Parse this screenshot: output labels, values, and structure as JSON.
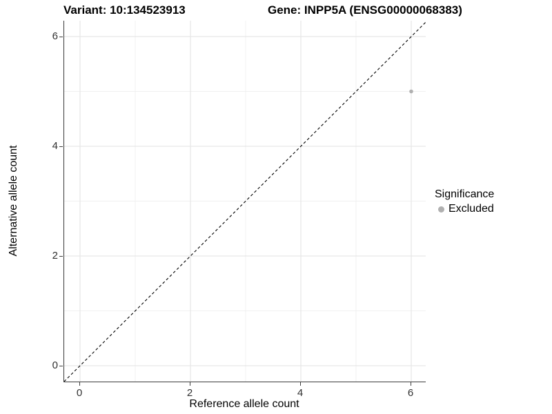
{
  "header": {
    "title_variant": "Variant: 10:134523913",
    "title_gene": "Gene: INPP5A (ENSG00000068383)"
  },
  "chart_data": {
    "type": "scatter",
    "titles": [
      "Variant: 10:134523913",
      "Gene: INPP5A (ENSG00000068383)"
    ],
    "xlabel": "Reference allele count",
    "ylabel": "Alternative allele count",
    "xlim": [
      -0.29,
      6.29
    ],
    "ylim": [
      -0.29,
      6.29
    ],
    "x_major_ticks": [
      0,
      2,
      4,
      6
    ],
    "y_major_ticks": [
      0,
      2,
      4,
      6
    ],
    "x_minor_ticks": [
      1,
      3,
      5
    ],
    "y_minor_ticks": [
      1,
      3,
      5
    ],
    "grid": "major+minor",
    "reference_line": {
      "kind": "identity y=x",
      "style": "dashed",
      "color": "#000000"
    },
    "series": [
      {
        "name": "Excluded",
        "color": "#b0b0b0",
        "points": [
          {
            "x": 6,
            "y": 5
          }
        ]
      }
    ],
    "legend": {
      "title": "Significance",
      "position": "right",
      "entries": [
        {
          "label": "Excluded",
          "color": "#b0b0b0"
        }
      ]
    }
  },
  "colors": {
    "background": "#ffffff",
    "axis_line": "#3a3a3a",
    "grid_major": "#e6e6e6",
    "grid_minor": "#f0f0f0",
    "tick_label": "#303030"
  }
}
